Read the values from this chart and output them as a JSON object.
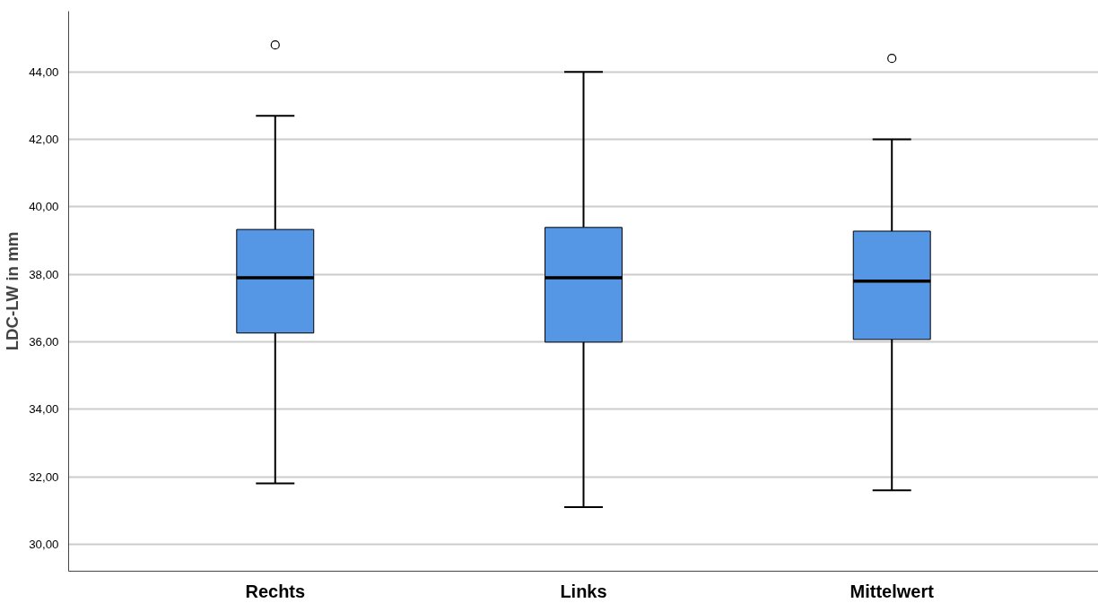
{
  "chart_data": {
    "type": "box",
    "ylabel": "LDC-LW in mm",
    "categories": [
      "Rechts",
      "Links",
      "Mittelwert"
    ],
    "color": "#5596e5",
    "boxes": [
      {
        "low": 31.8,
        "q1": 36.26,
        "median": 37.9,
        "q3": 39.33,
        "high": 42.7,
        "outliers": [
          44.8
        ]
      },
      {
        "low": 31.1,
        "q1": 35.99,
        "median": 37.9,
        "q3": 39.39,
        "high": 44.0
      },
      {
        "low": 31.6,
        "q1": 36.07,
        "median": 37.8,
        "q3": 39.28,
        "high": 42.0,
        "outliers": [
          44.4
        ]
      }
    ],
    "ylim": [
      29.2,
      45.8
    ],
    "yticks": [
      {
        "value": 30,
        "label": "30,00"
      },
      {
        "value": 32,
        "label": "32,00"
      },
      {
        "value": 34,
        "label": "34,00"
      },
      {
        "value": 36,
        "label": "36,00"
      },
      {
        "value": 38,
        "label": "38,00"
      },
      {
        "value": 40,
        "label": "40,00"
      },
      {
        "value": 42,
        "label": "42,00"
      },
      {
        "value": 44,
        "label": "44,00"
      }
    ],
    "grid": "y"
  }
}
